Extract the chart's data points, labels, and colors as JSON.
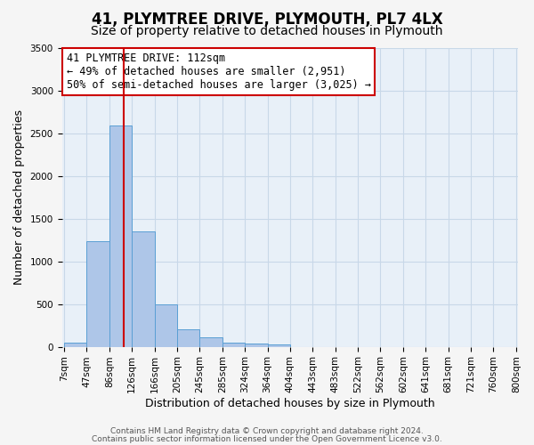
{
  "title": "41, PLYMTREE DRIVE, PLYMOUTH, PL7 4LX",
  "subtitle": "Size of property relative to detached houses in Plymouth",
  "xlabel": "Distribution of detached houses by size in Plymouth",
  "ylabel": "Number of detached properties",
  "bar_values": [
    50,
    1240,
    2590,
    1350,
    500,
    200,
    110,
    50,
    40,
    30,
    0,
    0,
    0,
    0,
    0,
    0,
    0,
    0,
    0,
    0
  ],
  "bin_labels": [
    "7sqm",
    "47sqm",
    "86sqm",
    "126sqm",
    "166sqm",
    "205sqm",
    "245sqm",
    "285sqm",
    "324sqm",
    "364sqm",
    "404sqm",
    "443sqm",
    "483sqm",
    "522sqm",
    "562sqm",
    "602sqm",
    "641sqm",
    "681sqm",
    "721sqm",
    "760sqm",
    "800sqm"
  ],
  "bar_color": "#aec6e8",
  "bar_edge_color": "#5a9fd4",
  "red_line_color": "#cc0000",
  "red_line_x": 2.65,
  "annotation_line1": "41 PLYMTREE DRIVE: 112sqm",
  "annotation_line2": "← 49% of detached houses are smaller (2,951)",
  "annotation_line3": "50% of semi-detached houses are larger (3,025) →",
  "annotation_box_color": "#ffffff",
  "annotation_box_edge_color": "#cc0000",
  "ylim": [
    0,
    3500
  ],
  "yticks": [
    0,
    500,
    1000,
    1500,
    2000,
    2500,
    3000,
    3500
  ],
  "grid_color": "#c8d8e8",
  "bg_color": "#e8f0f8",
  "fig_bg_color": "#f5f5f5",
  "footer1": "Contains HM Land Registry data © Crown copyright and database right 2024.",
  "footer2": "Contains public sector information licensed under the Open Government Licence v3.0.",
  "title_fontsize": 12,
  "subtitle_fontsize": 10,
  "axis_label_fontsize": 9,
  "tick_fontsize": 7.5,
  "annotation_fontsize": 8.5,
  "footer_fontsize": 6.5
}
